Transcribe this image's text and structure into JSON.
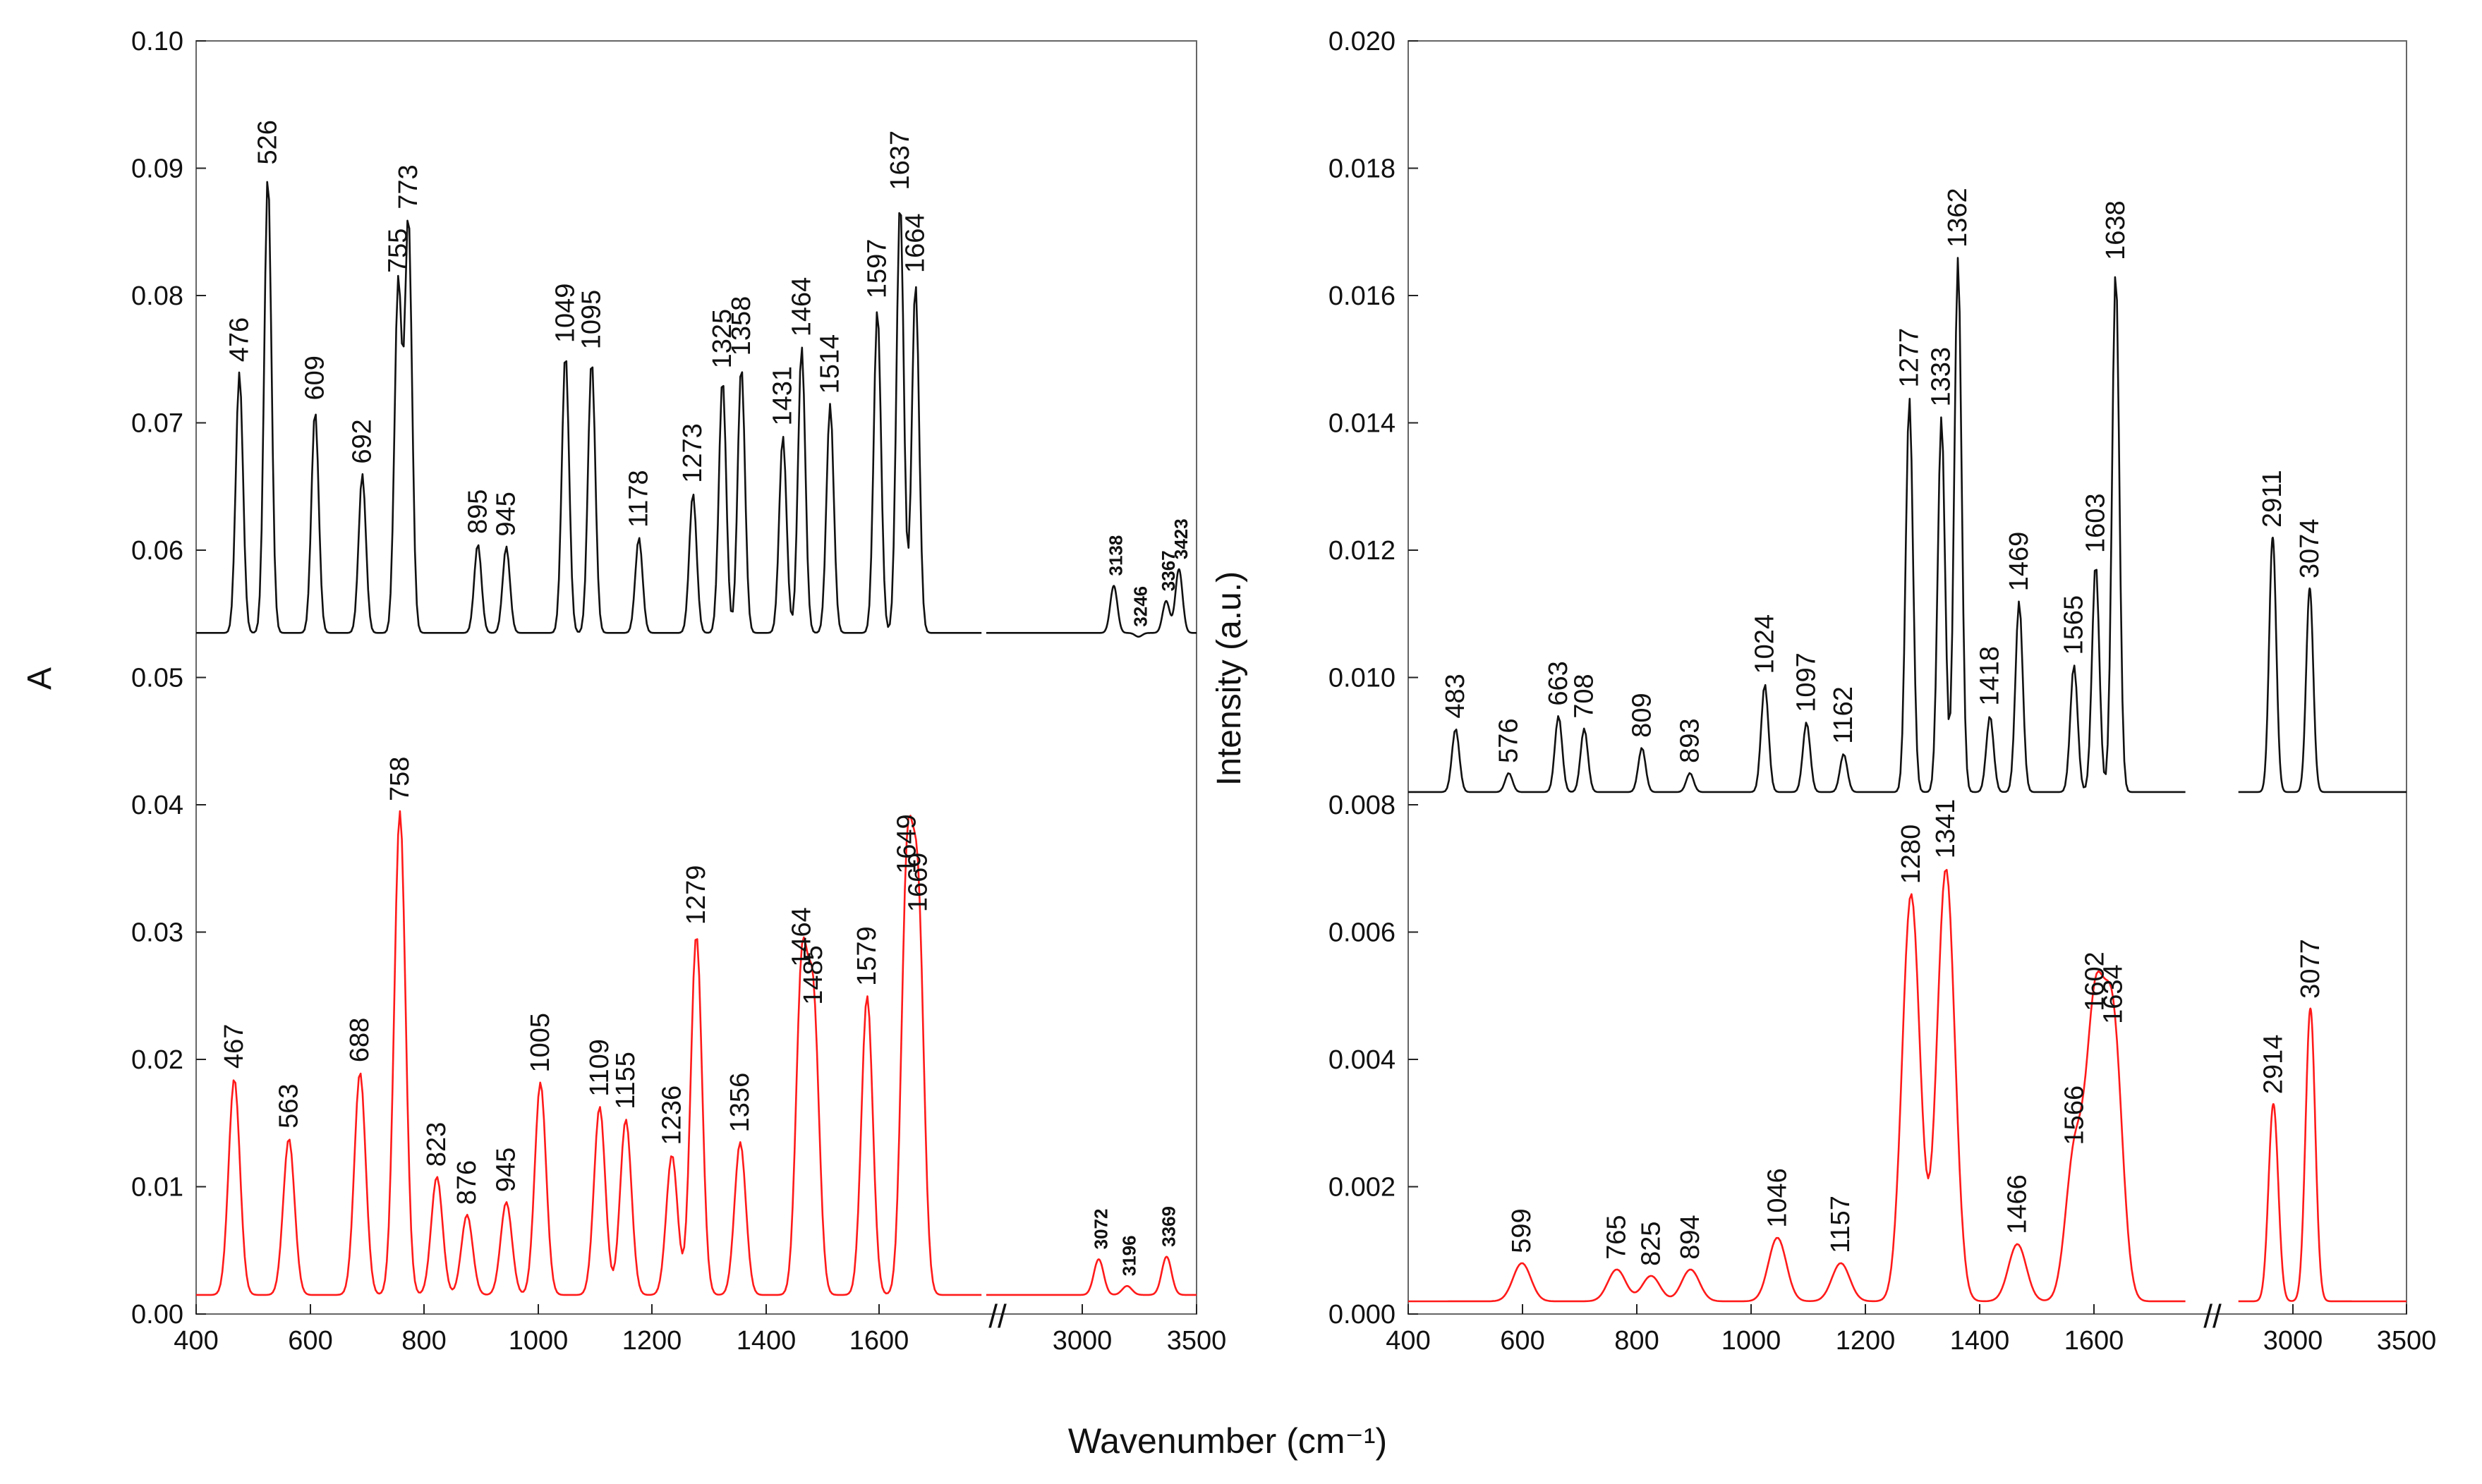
{
  "figure": {
    "xlabel": "Wavenumber (cm⁻¹)"
  },
  "chart_data": [
    {
      "type": "line",
      "panel": "left",
      "ylabel": "A",
      "ylim": [
        0.0,
        0.1
      ],
      "yticks": [
        "0.00",
        "0.01",
        "0.02",
        "0.03",
        "0.04",
        "0.05",
        "0.06",
        "0.07",
        "0.08",
        "0.09",
        "0.10"
      ],
      "xticks": [
        "400",
        "600",
        "800",
        "1000",
        "1200",
        "1400",
        "1600",
        "3000",
        "3500"
      ],
      "axis_break": "//",
      "series": [
        {
          "name": "upper",
          "color": "#111111",
          "peaks": [
            {
              "x": 476,
              "y": 0.074,
              "label": "476"
            },
            {
              "x": 526,
              "y": 0.0895,
              "label": "526"
            },
            {
              "x": 609,
              "y": 0.071,
              "label": "609"
            },
            {
              "x": 692,
              "y": 0.066,
              "label": "692"
            },
            {
              "x": 755,
              "y": 0.081,
              "label": "755"
            },
            {
              "x": 773,
              "y": 0.086,
              "label": "773"
            },
            {
              "x": 895,
              "y": 0.0605,
              "label": "895"
            },
            {
              "x": 945,
              "y": 0.0603,
              "label": "945"
            },
            {
              "x": 1049,
              "y": 0.0755,
              "label": "1049"
            },
            {
              "x": 1095,
              "y": 0.075,
              "label": "1095"
            },
            {
              "x": 1178,
              "y": 0.061,
              "label": "1178"
            },
            {
              "x": 1273,
              "y": 0.0645,
              "label": "1273"
            },
            {
              "x": 1325,
              "y": 0.0735,
              "label": "1325"
            },
            {
              "x": 1358,
              "y": 0.0745,
              "label": "1358"
            },
            {
              "x": 1431,
              "y": 0.069,
              "label": "1431"
            },
            {
              "x": 1464,
              "y": 0.076,
              "label": "1464"
            },
            {
              "x": 1514,
              "y": 0.0715,
              "label": "1514"
            },
            {
              "x": 1597,
              "y": 0.079,
              "label": "1597"
            },
            {
              "x": 1637,
              "y": 0.0875,
              "label": "1637"
            },
            {
              "x": 1664,
              "y": 0.081,
              "label": "1664"
            },
            {
              "x": 3138,
              "y": 0.0572,
              "label": "3138"
            },
            {
              "x": 3246,
              "y": 0.0532,
              "label": "3246"
            },
            {
              "x": 3367,
              "y": 0.056,
              "label": "3367"
            },
            {
              "x": 3423,
              "y": 0.0585,
              "label": "3423"
            }
          ]
        },
        {
          "name": "lower",
          "color": "#ff1a1a",
          "peaks": [
            {
              "x": 467,
              "y": 0.0185,
              "label": "467"
            },
            {
              "x": 563,
              "y": 0.0138,
              "label": "563"
            },
            {
              "x": 688,
              "y": 0.019,
              "label": "688"
            },
            {
              "x": 758,
              "y": 0.0395,
              "label": "758"
            },
            {
              "x": 823,
              "y": 0.0108,
              "label": "823"
            },
            {
              "x": 876,
              "y": 0.0078,
              "label": "876"
            },
            {
              "x": 945,
              "y": 0.0088,
              "label": "945"
            },
            {
              "x": 1005,
              "y": 0.0182,
              "label": "1005"
            },
            {
              "x": 1109,
              "y": 0.0163,
              "label": "1109"
            },
            {
              "x": 1155,
              "y": 0.0153,
              "label": "1155"
            },
            {
              "x": 1236,
              "y": 0.0125,
              "label": "1236"
            },
            {
              "x": 1279,
              "y": 0.0298,
              "label": "1279"
            },
            {
              "x": 1356,
              "y": 0.0135,
              "label": "1356"
            },
            {
              "x": 1464,
              "y": 0.0265,
              "label": "1464"
            },
            {
              "x": 1485,
              "y": 0.0235,
              "label": "1485"
            },
            {
              "x": 1579,
              "y": 0.025,
              "label": "1579"
            },
            {
              "x": 1649,
              "y": 0.0338,
              "label": "1649"
            },
            {
              "x": 1669,
              "y": 0.0308,
              "label": "1669"
            },
            {
              "x": 3072,
              "y": 0.0043,
              "label": "3072"
            },
            {
              "x": 3196,
              "y": 0.0022,
              "label": "3196"
            },
            {
              "x": 3369,
              "y": 0.0045,
              "label": "3369"
            }
          ]
        }
      ]
    },
    {
      "type": "line",
      "panel": "right",
      "ylabel": "Intensity (a.u.)",
      "ylim": [
        0.0,
        0.02
      ],
      "yticks": [
        "0.000",
        "0.002",
        "0.004",
        "0.006",
        "0.008",
        "0.010",
        "0.012",
        "0.014",
        "0.016",
        "0.018",
        "0.020"
      ],
      "xticks": [
        "400",
        "600",
        "800",
        "1000",
        "1200",
        "1400",
        "1600",
        "3000",
        "3500"
      ],
      "axis_break": "//",
      "series": [
        {
          "name": "upper",
          "color": "#111111",
          "peaks": [
            {
              "x": 483,
              "y": 0.0092,
              "label": "483"
            },
            {
              "x": 576,
              "y": 0.0085,
              "label": "576"
            },
            {
              "x": 663,
              "y": 0.0094,
              "label": "663"
            },
            {
              "x": 708,
              "y": 0.0092,
              "label": "708"
            },
            {
              "x": 809,
              "y": 0.0089,
              "label": "809"
            },
            {
              "x": 893,
              "y": 0.0085,
              "label": "893"
            },
            {
              "x": 1024,
              "y": 0.0099,
              "label": "1024"
            },
            {
              "x": 1097,
              "y": 0.0093,
              "label": "1097"
            },
            {
              "x": 1162,
              "y": 0.0088,
              "label": "1162"
            },
            {
              "x": 1277,
              "y": 0.0144,
              "label": "1277"
            },
            {
              "x": 1333,
              "y": 0.0141,
              "label": "1333"
            },
            {
              "x": 1362,
              "y": 0.0166,
              "label": "1362"
            },
            {
              "x": 1418,
              "y": 0.0094,
              "label": "1418"
            },
            {
              "x": 1469,
              "y": 0.0112,
              "label": "1469"
            },
            {
              "x": 1565,
              "y": 0.0102,
              "label": "1565"
            },
            {
              "x": 1603,
              "y": 0.0118,
              "label": "1603"
            },
            {
              "x": 1638,
              "y": 0.0164,
              "label": "1638"
            },
            {
              "x": 2911,
              "y": 0.0122,
              "label": "2911"
            },
            {
              "x": 3074,
              "y": 0.0114,
              "label": "3074"
            }
          ]
        },
        {
          "name": "lower",
          "color": "#ff1a1a",
          "peaks": [
            {
              "x": 599,
              "y": 0.0008,
              "label": "599"
            },
            {
              "x": 765,
              "y": 0.0007,
              "label": "765"
            },
            {
              "x": 825,
              "y": 0.0006,
              "label": "825"
            },
            {
              "x": 894,
              "y": 0.0007,
              "label": "894"
            },
            {
              "x": 1046,
              "y": 0.0012,
              "label": "1046"
            },
            {
              "x": 1157,
              "y": 0.0008,
              "label": "1157"
            },
            {
              "x": 1280,
              "y": 0.0066,
              "label": "1280"
            },
            {
              "x": 1341,
              "y": 0.007,
              "label": "1341"
            },
            {
              "x": 1466,
              "y": 0.0011,
              "label": "1466"
            },
            {
              "x": 1566,
              "y": 0.0025,
              "label": "1566"
            },
            {
              "x": 1602,
              "y": 0.0046,
              "label": "1602"
            },
            {
              "x": 1634,
              "y": 0.0044,
              "label": "1634"
            },
            {
              "x": 2914,
              "y": 0.0033,
              "label": "2914"
            },
            {
              "x": 3077,
              "y": 0.0048,
              "label": "3077"
            }
          ]
        }
      ]
    }
  ]
}
